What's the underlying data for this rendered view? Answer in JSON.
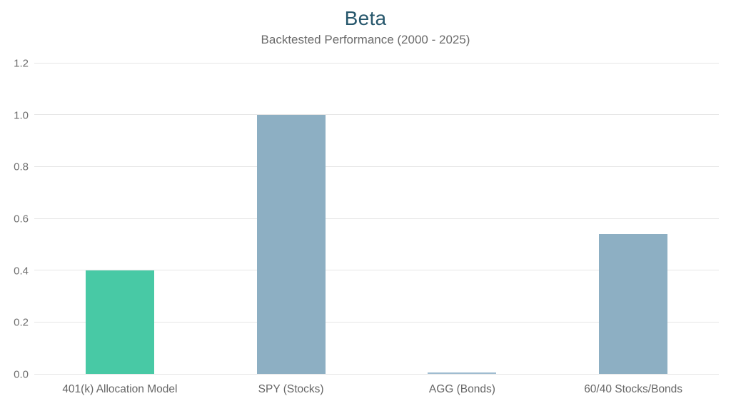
{
  "chart_data": {
    "type": "bar",
    "title": "Beta",
    "subtitle": "Backtested Performance (2000 - 2025)",
    "categories": [
      "401(k) Allocation Model",
      "SPY (Stocks)",
      "AGG (Bonds)",
      "60/40 Stocks/Bonds"
    ],
    "values": [
      0.4,
      1.0,
      0.005,
      0.54
    ],
    "bar_colors": [
      "#48c9a5",
      "#8dafc3",
      "#9fbcd0",
      "#8dafc3"
    ],
    "xlabel": "",
    "ylabel": "",
    "ylim": [
      0,
      1.2
    ],
    "yticks": [
      0.0,
      0.2,
      0.4,
      0.6,
      0.8,
      1.0,
      1.2
    ],
    "ytick_labels": [
      "0.0",
      "0.2",
      "0.4",
      "0.6",
      "0.8",
      "1.0",
      "1.2"
    ],
    "grid": true,
    "legend_position": "none"
  },
  "colors": {
    "background": "#ffffff",
    "title": "#27576c",
    "subtitle": "#6b6b6b",
    "tick_label": "#6f6f6f",
    "x_label": "#666666",
    "gridline": "#e6e6e6",
    "accent_green": "#48c9a5",
    "accent_blue": "#8dafc3"
  }
}
